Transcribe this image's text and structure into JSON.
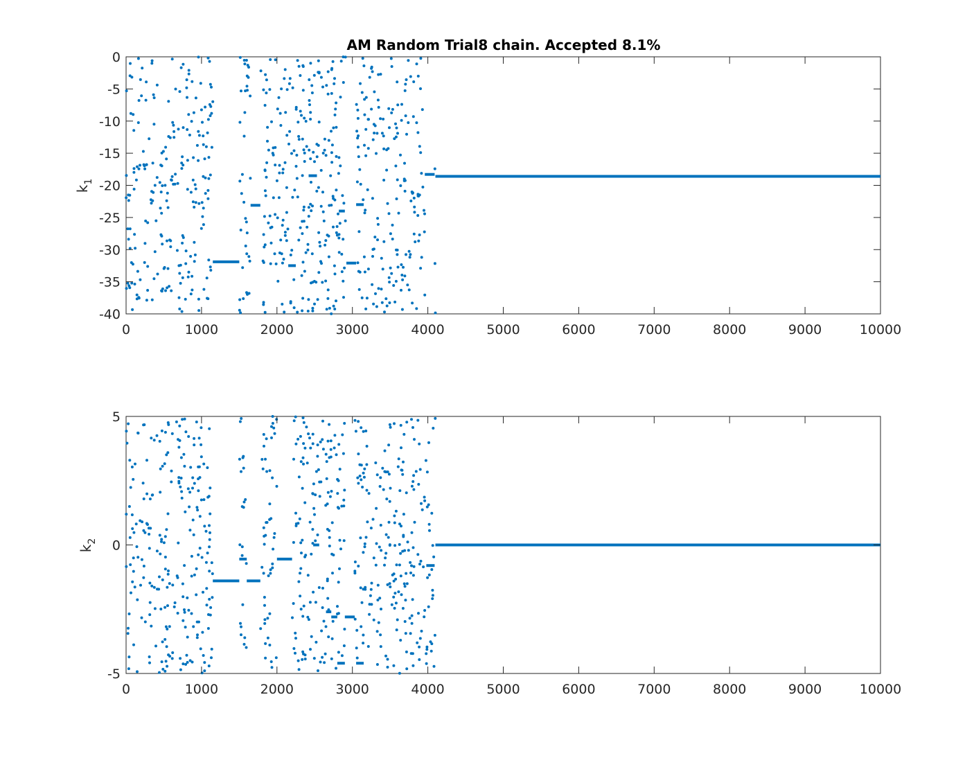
{
  "chart_data": [
    {
      "type": "scatter",
      "title": "AM Random Trial8 chain. Accepted 8.1%",
      "ylabel": "k",
      "ylabel_subscript": "1",
      "xlim": [
        0,
        10000
      ],
      "ylim": [
        -40,
        0
      ],
      "x_ticks": [
        0,
        1000,
        2000,
        3000,
        4000,
        5000,
        6000,
        7000,
        8000,
        9000,
        10000
      ],
      "x_tick_labels": [
        "0",
        "1000",
        "2000",
        "3000",
        "4000",
        "5000",
        "6000",
        "7000",
        "8000",
        "9000",
        "10000"
      ],
      "y_ticks": [
        0,
        -5,
        -10,
        -15,
        -20,
        -25,
        -30,
        -35,
        -40
      ],
      "y_tick_labels": [
        "0",
        "-5",
        "-10",
        "-15",
        "-20",
        "-25",
        "-30",
        "-35",
        "-40"
      ],
      "color": "#0072BD",
      "scatter_range": [
        0,
        4100
      ],
      "plateaus": [
        {
          "x": [
            1150,
            1500
          ],
          "y": -31.9
        },
        {
          "x": [
            1650,
            1780
          ],
          "y": -23.1
        },
        {
          "x": [
            2150,
            2250
          ],
          "y": -32.5
        },
        {
          "x": [
            2420,
            2530
          ],
          "y": -18.5
        },
        {
          "x": [
            2820,
            2900
          ],
          "y": -24.0
        },
        {
          "x": [
            2920,
            3050
          ],
          "y": -32.1
        },
        {
          "x": [
            3050,
            3150
          ],
          "y": -23.0
        },
        {
          "x": [
            3960,
            4090
          ],
          "y": -18.3
        },
        {
          "x": [
            4100,
            10000
          ],
          "y": -18.6
        }
      ],
      "grid": false
    },
    {
      "type": "scatter",
      "title": "",
      "ylabel": "k",
      "ylabel_subscript": "2",
      "xlim": [
        0,
        10000
      ],
      "ylim": [
        -5,
        5
      ],
      "x_ticks": [
        0,
        1000,
        2000,
        3000,
        4000,
        5000,
        6000,
        7000,
        8000,
        9000,
        10000
      ],
      "x_tick_labels": [
        "0",
        "1000",
        "2000",
        "3000",
        "4000",
        "5000",
        "6000",
        "7000",
        "8000",
        "9000",
        "10000"
      ],
      "y_ticks": [
        5,
        0,
        -5
      ],
      "y_tick_labels": [
        "5",
        "0",
        "-5"
      ],
      "color": "#0072BD",
      "scatter_range": [
        0,
        4100
      ],
      "plateaus": [
        {
          "x": [
            1150,
            1500
          ],
          "y": -1.4
        },
        {
          "x": [
            1500,
            1600
          ],
          "y": -0.55
        },
        {
          "x": [
            1600,
            1780
          ],
          "y": -1.4
        },
        {
          "x": [
            2000,
            2200
          ],
          "y": -0.55
        },
        {
          "x": [
            2480,
            2560
          ],
          "y": 0.0
        },
        {
          "x": [
            2650,
            2720
          ],
          "y": -2.6
        },
        {
          "x": [
            2720,
            2800
          ],
          "y": -2.8
        },
        {
          "x": [
            2900,
            3030
          ],
          "y": -2.8
        },
        {
          "x": [
            2800,
            2900
          ],
          "y": -4.6
        },
        {
          "x": [
            3050,
            3150
          ],
          "y": -4.6
        },
        {
          "x": [
            3980,
            4090
          ],
          "y": -0.8
        },
        {
          "x": [
            4100,
            10000
          ],
          "y": 0.0
        }
      ],
      "grid": false
    }
  ]
}
